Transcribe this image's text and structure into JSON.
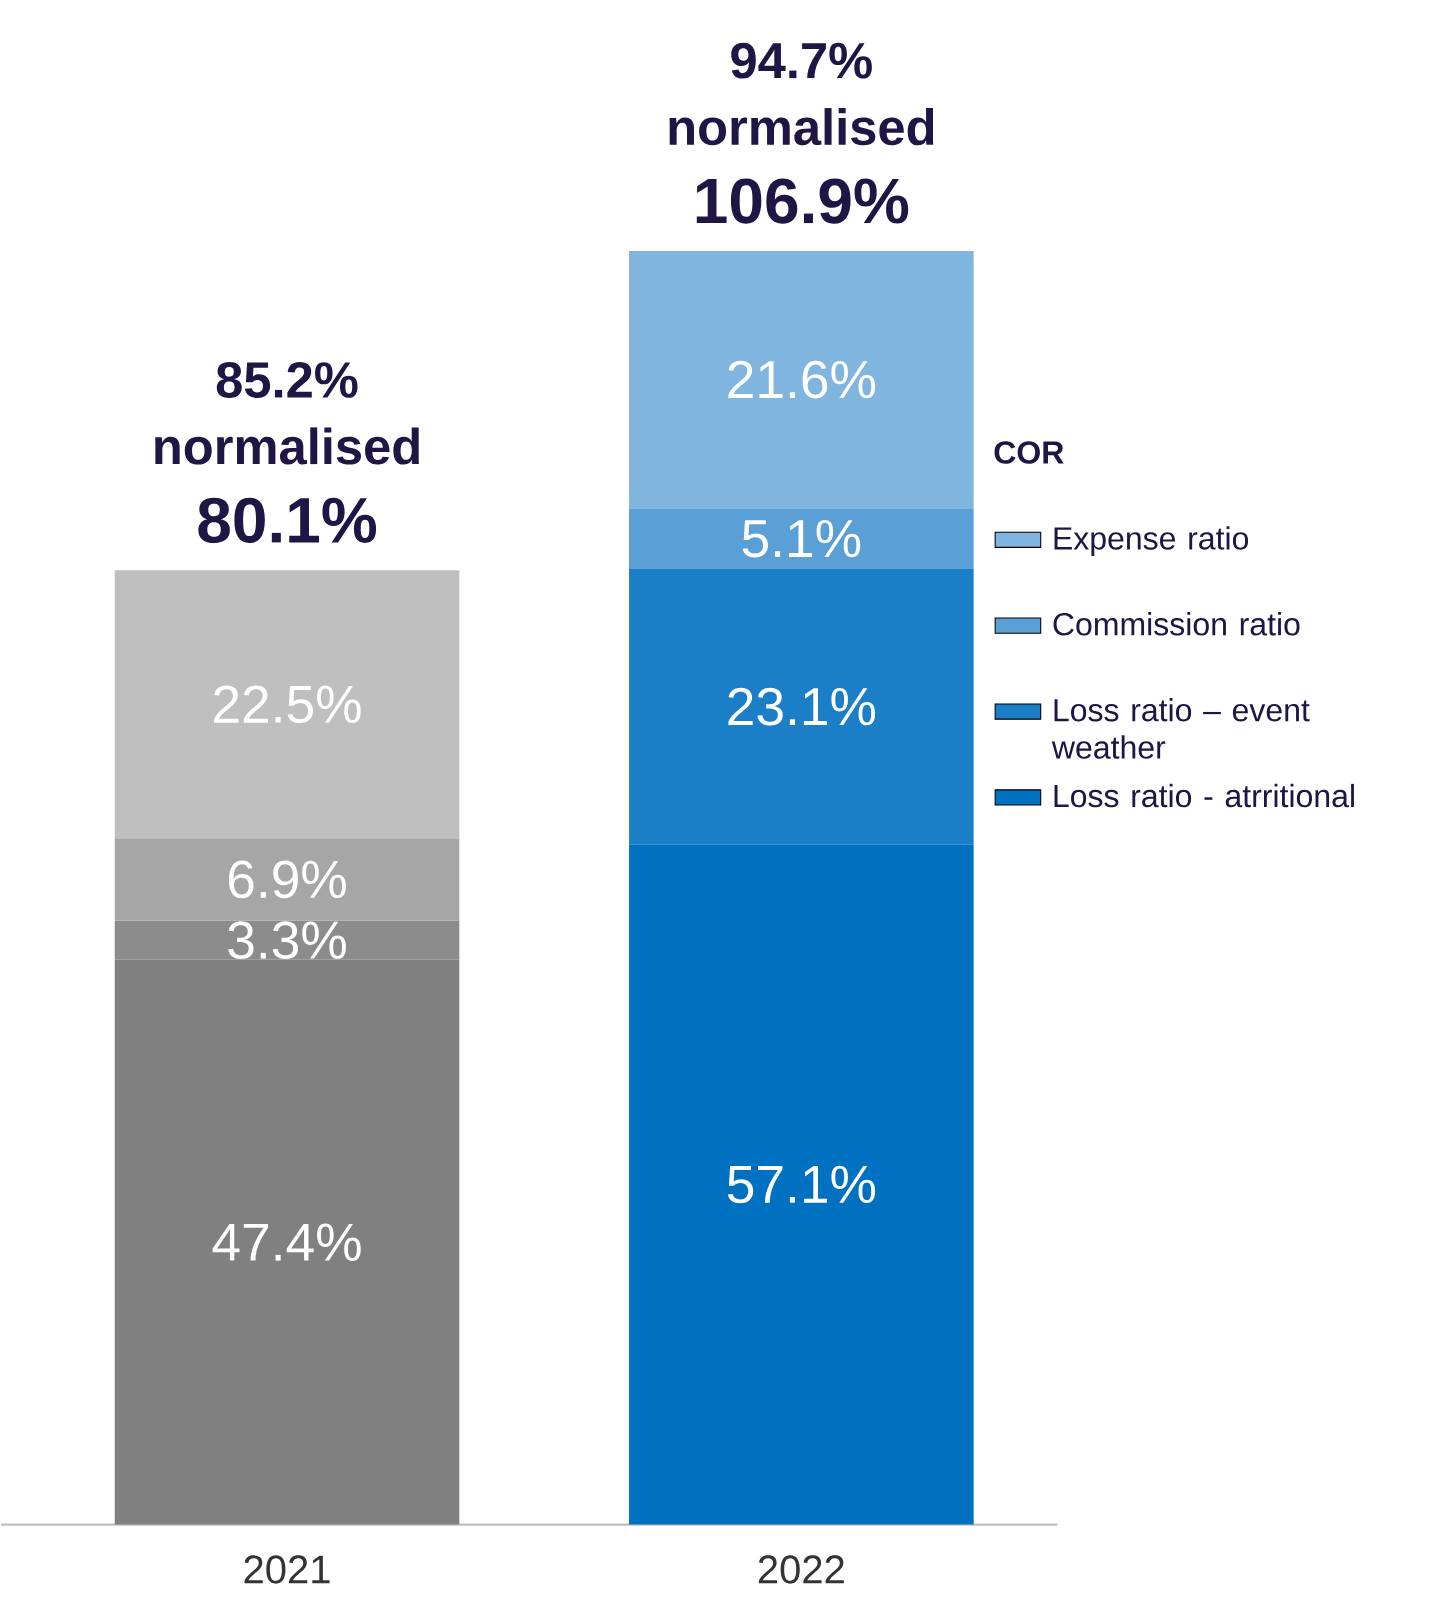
{
  "chart_data": {
    "type": "bar",
    "stacked": true,
    "categories": [
      "2021",
      "2022"
    ],
    "legend_title": "COR",
    "legend": "right",
    "tick_labels": "x",
    "series": [
      {
        "name": "Loss ratio - atrritional",
        "color": "#0070c0",
        "colors": [
          "#808080",
          "#0070c0"
        ],
        "values": [
          47.4,
          57.1
        ],
        "value_labels": [
          "47.4%",
          "57.1%"
        ]
      },
      {
        "name": "Loss ratio – event weather",
        "color": "#1b7fc8",
        "colors": [
          "#8c8c8c",
          "#1b7fc8"
        ],
        "values": [
          3.3,
          23.1
        ],
        "value_labels": [
          "3.3%",
          "23.1%"
        ]
      },
      {
        "name": "Commission ratio",
        "color": "#5a9fd6",
        "colors": [
          "#a6a6a6",
          "#5a9fd6"
        ],
        "values": [
          6.9,
          5.1
        ],
        "value_labels": [
          "6.9%",
          "5.1%"
        ]
      },
      {
        "name": "Expense ratio",
        "color": "#80b5df",
        "colors": [
          "#bfbfbf",
          "#80b5df"
        ],
        "values": [
          22.5,
          21.6
        ],
        "value_labels": [
          "22.5%",
          "21.6%"
        ]
      }
    ],
    "totals": [
      "80.1%",
      "106.9%"
    ],
    "annotations": [
      "85.2% normalised",
      "94.7% normalised"
    ]
  }
}
